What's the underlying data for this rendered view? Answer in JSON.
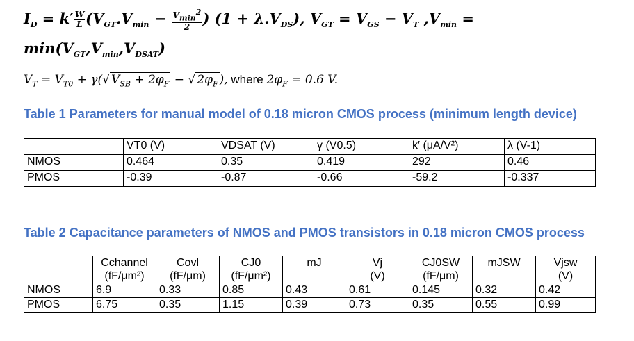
{
  "equation1": {
    "line1_a": "I",
    "line1_b": " = k′",
    "line1_c": "(V",
    "line1_d": ".V",
    "line1_e": " − ",
    "line1_f": ") (1 + λ.V",
    "line1_g": "),  V",
    "line1_h": " = V",
    "line1_i": " − V",
    "line1_j": " ,V",
    "line1_k": " =",
    "frac_wl_num": "W",
    "frac_wl_den": "L",
    "frac_v_num": "V",
    "frac_v_den": "2",
    "sub_D": "D",
    "sub_GT": "GT",
    "sub_min": "min",
    "sub_DS": "DS",
    "sub_GS": "GS",
    "sub_T": "T",
    "sup_2": "2",
    "line2": "min(V",
    "line2_b": ",V",
    "line2_c": ",V",
    "line2_d": ")",
    "sub_DSAT": "DSAT"
  },
  "equation2": {
    "vt": "V",
    "sub_T": "T",
    "eq": " = V",
    "sub_T0": "T0",
    "plus": " + γ(",
    "root1_a": "√",
    "root1_v": "V",
    "sub_SB": "SB",
    "root1_b": " + 2φ",
    "sub_F1": "F",
    "minus": " − ",
    "root2_a": "√",
    "root2_b": "2φ",
    "sub_F2": "F",
    "close": "),",
    "where": " where ",
    "where_eq": "2φ",
    "sub_F3": "F",
    "where_val": " = 0.6 V."
  },
  "table1": {
    "caption": "Table 1 Parameters for manual model of 0.18 micron CMOS process (minimum length device)",
    "headers": [
      "",
      "VT0 (V)",
      "VDSAT (V)",
      "γ (V0.5)",
      "k′ (μA/V²)",
      "λ (V-1)"
    ],
    "rows": [
      [
        "NMOS",
        "0.464",
        "0.35",
        "0.419",
        "292",
        "0.46"
      ],
      [
        "PMOS",
        "-0.39",
        "-0.87",
        "-0.66",
        "-59.2",
        "-0.337"
      ]
    ]
  },
  "table2": {
    "caption": "Table 2 Capacitance parameters of NMOS and PMOS transistors in 0.18 micron CMOS process",
    "headers_top": [
      "",
      "Cchannel",
      "Covl",
      "CJ0",
      "mJ",
      "Vj",
      "CJ0SW",
      "mJSW",
      "Vjsw"
    ],
    "headers_bottom": [
      "",
      "(fF/μm²)",
      "(fF/μm)",
      "(fF/μm²)",
      "",
      "(V)",
      "(fF/μm)",
      "",
      "(V)"
    ],
    "rows": [
      [
        "NMOS",
        "6.9",
        "0.33",
        "0.85",
        "0.43",
        "0.61",
        "0.145",
        "0.32",
        "0.42"
      ],
      [
        "PMOS",
        "6.75",
        "0.35",
        "1.15",
        "0.39",
        "0.73",
        "0.35",
        "0.55",
        "0.99"
      ]
    ]
  }
}
